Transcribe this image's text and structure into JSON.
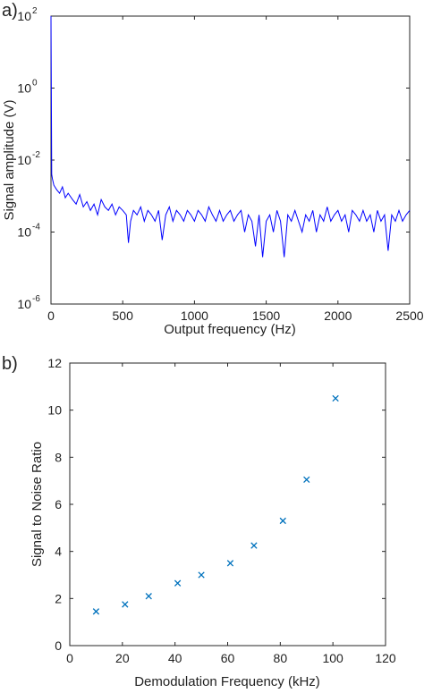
{
  "chart_data": [
    {
      "panel_label": "a)",
      "type": "line",
      "xlabel": "Output frequency (Hz)",
      "ylabel": "Signal amplitude (V)",
      "xlim": [
        0,
        2500
      ],
      "ylim": [
        1e-06,
        100
      ],
      "yscale": "log",
      "xticks": [
        "0",
        "500",
        "1000",
        "1500",
        "2000",
        "2500"
      ],
      "yticks": [
        {
          "base": "10",
          "exp": "-6"
        },
        {
          "base": "10",
          "exp": "-4"
        },
        {
          "base": "10",
          "exp": "-2"
        },
        {
          "base": "10",
          "exp": "0"
        },
        {
          "base": "10",
          "exp": "2"
        }
      ],
      "grid": false,
      "line_color": "#0000ff",
      "series": [
        {
          "x": [
            0,
            5,
            10,
            20,
            40,
            60,
            80,
            100,
            120,
            150,
            175,
            200,
            225,
            250,
            275,
            300,
            325,
            350,
            375,
            400,
            425,
            450,
            475,
            500,
            525,
            540,
            555,
            575,
            600,
            625,
            650,
            675,
            700,
            725,
            750,
            775,
            800,
            825,
            850,
            875,
            900,
            925,
            950,
            975,
            1000,
            1025,
            1050,
            1075,
            1100,
            1125,
            1150,
            1175,
            1200,
            1225,
            1250,
            1275,
            1300,
            1325,
            1350,
            1375,
            1400,
            1425,
            1450,
            1475,
            1500,
            1525,
            1550,
            1575,
            1600,
            1625,
            1650,
            1675,
            1700,
            1725,
            1750,
            1775,
            1800,
            1825,
            1850,
            1875,
            1900,
            1925,
            1950,
            1975,
            2000,
            2025,
            2050,
            2075,
            2100,
            2125,
            2150,
            2175,
            2200,
            2225,
            2250,
            2275,
            2300,
            2325,
            2350,
            2375,
            2400,
            2425,
            2450,
            2475,
            2500
          ],
          "y": [
            100,
            0.004,
            0.003,
            0.002,
            0.0015,
            0.0012,
            0.0018,
            0.0009,
            0.0012,
            0.0008,
            0.0006,
            0.0011,
            0.0005,
            0.0007,
            0.0004,
            0.0006,
            0.0003,
            0.0008,
            0.0005,
            0.0004,
            0.0006,
            0.0003,
            0.0005,
            0.0004,
            0.0003,
            5e-05,
            0.0002,
            0.0004,
            0.0003,
            0.0005,
            0.0002,
            0.0004,
            0.0003,
            0.0002,
            0.0004,
            6e-05,
            0.0003,
            0.0005,
            0.0002,
            0.0004,
            0.0003,
            0.0002,
            0.0004,
            0.0003,
            0.0002,
            0.0004,
            0.0003,
            0.0002,
            0.0005,
            0.0003,
            0.0002,
            0.0004,
            0.0002,
            0.0003,
            0.0004,
            0.0002,
            0.0003,
            0.0004,
            0.0001,
            0.0003,
            0.0002,
            4e-05,
            0.0003,
            2e-05,
            0.0002,
            0.0003,
            0.0001,
            0.0004,
            0.0002,
            2e-05,
            0.0003,
            0.0002,
            0.0004,
            0.0002,
            0.0001,
            0.0003,
            0.0002,
            0.0004,
            0.0001,
            0.0003,
            0.0002,
            0.0005,
            0.0002,
            0.0003,
            0.0004,
            0.0002,
            0.0003,
            0.0001,
            0.0004,
            0.0003,
            0.0002,
            0.0004,
            0.0002,
            0.0003,
            0.0001,
            0.0004,
            0.0002,
            0.0003,
            3e-05,
            0.0003,
            0.0002,
            0.0004,
            0.0002,
            0.0003,
            0.0004
          ]
        }
      ]
    },
    {
      "panel_label": "b)",
      "type": "scatter",
      "xlabel": "Demodulation Frequency (kHz)",
      "ylabel": "Signal to Noise Ratio",
      "xlim": [
        0,
        120
      ],
      "ylim": [
        0,
        12
      ],
      "xticks": [
        "0",
        "20",
        "40",
        "60",
        "80",
        "100",
        "120"
      ],
      "yticks": [
        "0",
        "2",
        "4",
        "6",
        "8",
        "10",
        "12"
      ],
      "grid": false,
      "marker": "x",
      "marker_color": "#0072bd",
      "series": [
        {
          "x": [
            10,
            21,
            30,
            41,
            50,
            61,
            70,
            81,
            90,
            101
          ],
          "y": [
            1.45,
            1.75,
            2.1,
            2.65,
            3.0,
            3.5,
            4.25,
            5.3,
            7.05,
            10.5
          ]
        }
      ]
    }
  ]
}
